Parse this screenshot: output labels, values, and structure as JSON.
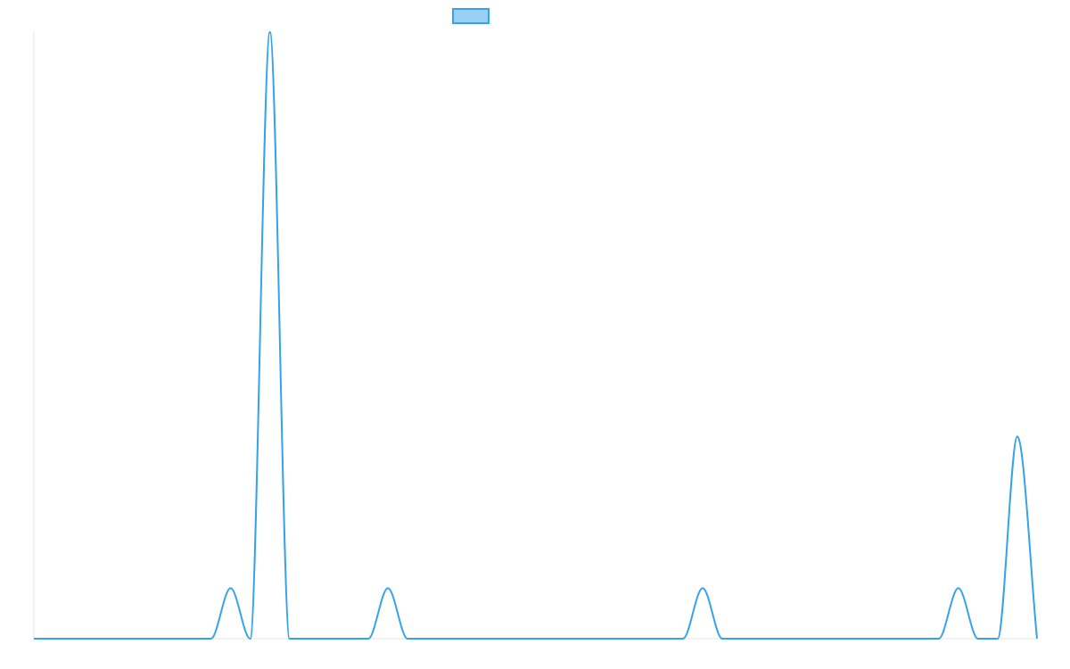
{
  "chart_data": {
    "type": "line",
    "title": "",
    "xlabel": "",
    "ylabel": "",
    "x": [
      0,
      1,
      2,
      3,
      4,
      5,
      6,
      7,
      8,
      9,
      10,
      11,
      12,
      13,
      14,
      15,
      16,
      17,
      18,
      19,
      20,
      21,
      22,
      23,
      24,
      25,
      26,
      27,
      28,
      29,
      30,
      31,
      32,
      33,
      34,
      35,
      36,
      37,
      38,
      39,
      40,
      41,
      42,
      43,
      44,
      45,
      46,
      47,
      48,
      49,
      50,
      51
    ],
    "series": [
      {
        "name": "",
        "color": "#36a2eb",
        "fill": "#9ad0f5",
        "values": [
          0,
          0,
          0,
          0,
          0,
          0,
          0,
          0,
          0,
          0,
          1,
          0,
          12,
          0,
          0,
          0,
          0,
          0,
          1,
          0,
          0,
          0,
          0,
          0,
          0,
          0,
          0,
          0,
          0,
          0,
          0,
          0,
          0,
          0,
          1,
          0,
          0,
          0,
          0,
          0,
          0,
          0,
          0,
          0,
          0,
          0,
          0,
          1,
          0,
          0,
          4,
          0
        ]
      }
    ],
    "ylim": [
      0,
      12
    ],
    "grid": false,
    "legend": "top"
  }
}
